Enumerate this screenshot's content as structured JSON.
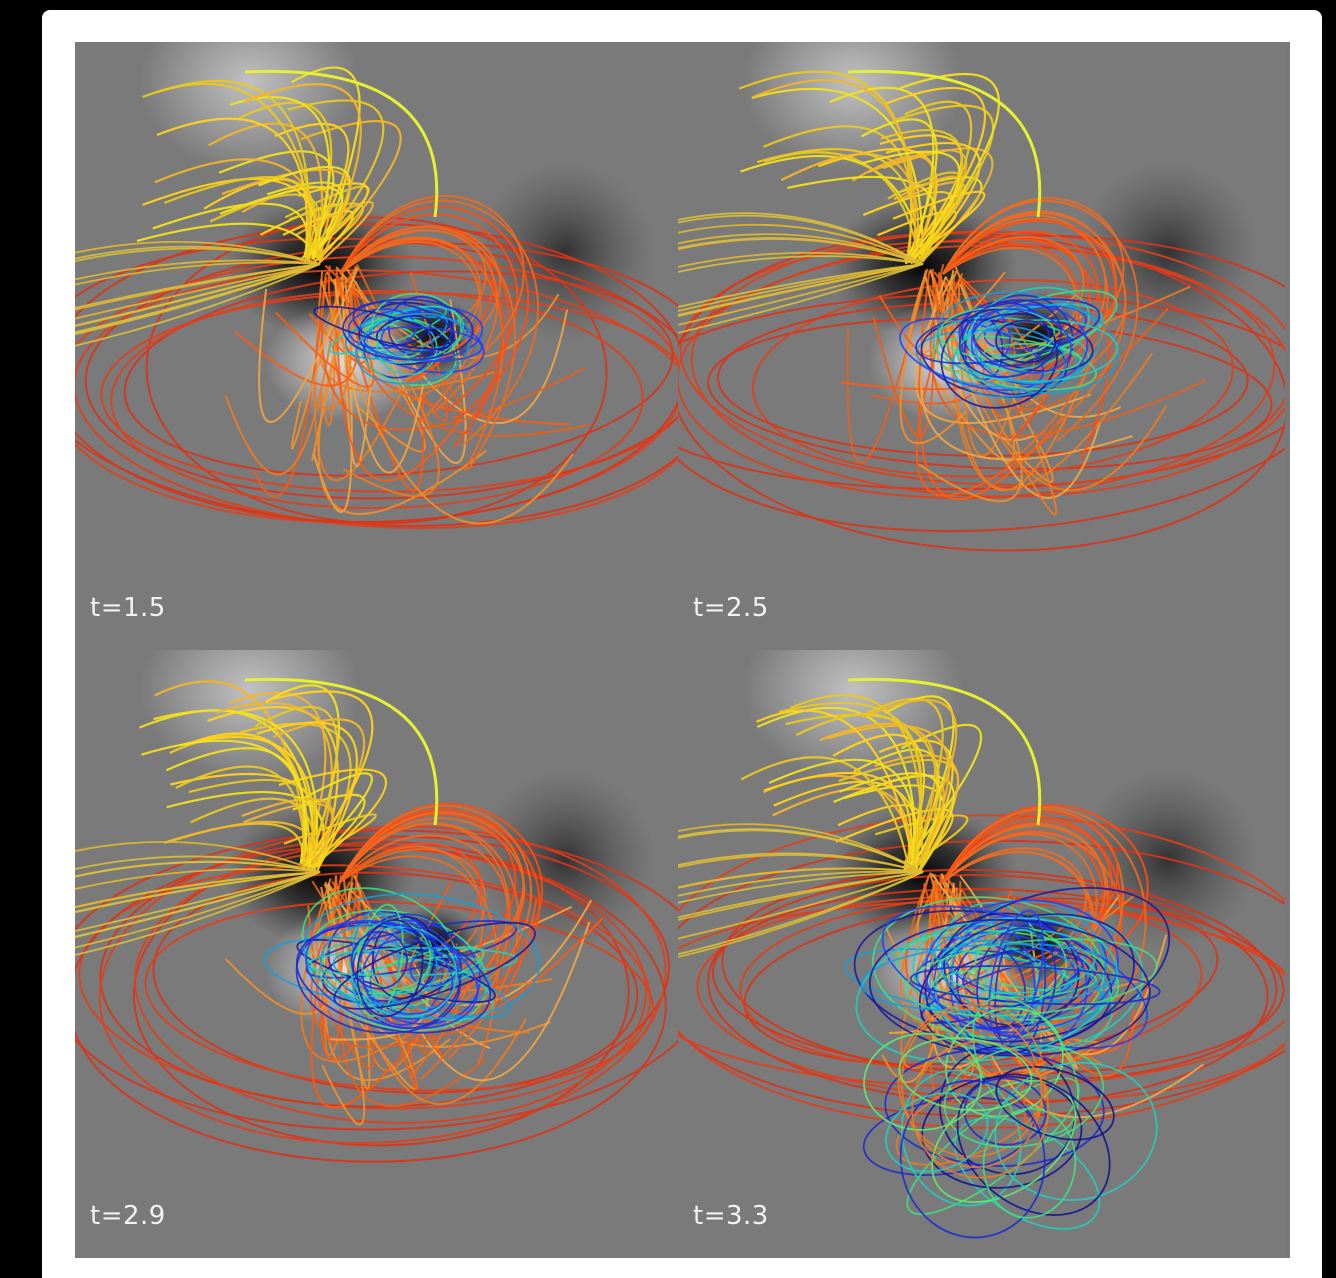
{
  "panels": [
    {
      "label": "t=1.5"
    },
    {
      "label": "t=2.5"
    },
    {
      "label": "t=2.9"
    },
    {
      "label": "t=3.3"
    }
  ]
}
